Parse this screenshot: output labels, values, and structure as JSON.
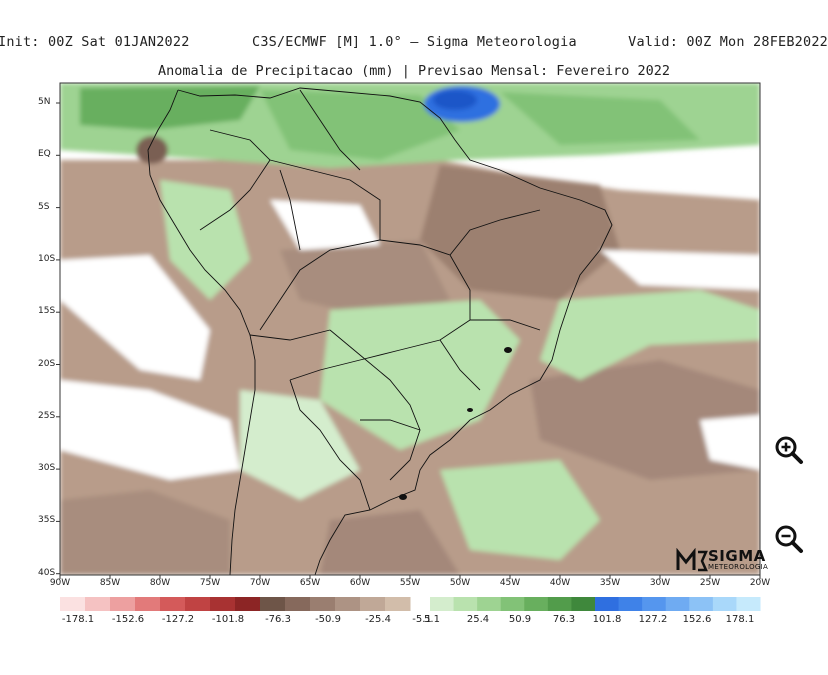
{
  "header": {
    "init": "Init: 00Z Sat 01JAN2022",
    "model": "C3S/ECMWF [M] 1.0° – Sigma Meteorologia",
    "valid": "Valid: 00Z Mon 28FEB2022"
  },
  "title": "Anomalia de Precipitacao (mm) | Previsao Mensal: Fevereiro 2022",
  "axes": {
    "lat_ticks": [
      "5N",
      "EQ",
      "5S",
      "10S",
      "15S",
      "20S",
      "25S",
      "30S",
      "35S",
      "40S"
    ],
    "lon_ticks": [
      "90W",
      "85W",
      "80W",
      "75W",
      "70W",
      "65W",
      "60W",
      "55W",
      "50W",
      "45W",
      "40W",
      "35W",
      "30W",
      "25W",
      "20W"
    ]
  },
  "colorbar": {
    "labels": [
      "-178.1",
      "-152.6",
      "-127.2",
      "-101.8",
      "-76.3",
      "-50.9",
      "-25.4",
      "-5.1",
      "5.1",
      "25.4",
      "50.9",
      "76.3",
      "101.8",
      "127.2",
      "152.6",
      "178.1"
    ],
    "neg_colors": [
      "#fbe1e1",
      "#f5c2c2",
      "#eda0a0",
      "#e27a7a",
      "#d45a5a",
      "#c04343",
      "#a83232",
      "#8c2525",
      "#6e5548",
      "#86695c",
      "#9a7e70",
      "#ad9384",
      "#c0a897",
      "#d2bdaa"
    ],
    "pos_colors": [
      "#d4edcd",
      "#b9e2ae",
      "#9ed392",
      "#82c277",
      "#68af5e",
      "#529c4b",
      "#3f883c",
      "#2f6fe0",
      "#3f82e8",
      "#5596ee",
      "#6fabf2",
      "#8cc2f6",
      "#a9d8fa",
      "#c6eafc"
    ]
  },
  "logo": {
    "name": "SIGMA",
    "sub": "METEOROLOGIA"
  },
  "controls": {
    "zoom_in": "zoom-in",
    "zoom_out": "zoom-out"
  }
}
